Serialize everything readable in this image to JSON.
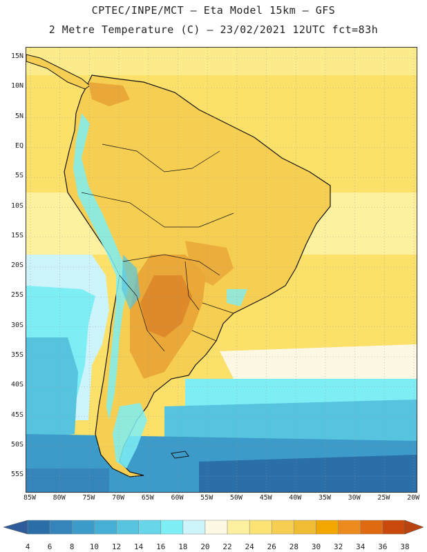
{
  "title_line1": "CPTEC/INPE/MCT –  Eta Model 15km – GFS",
  "title_line2": "2 Metre Temperature (C) – 23/02/2021 12UTC fct=83h",
  "lat_labels": [
    "15N",
    "10N",
    "5N",
    "EQ",
    "5S",
    "10S",
    "15S",
    "20S",
    "25S",
    "30S",
    "35S",
    "40S",
    "45S",
    "50S",
    "55S"
  ],
  "lon_labels": [
    "85W",
    "80W",
    "75W",
    "70W",
    "65W",
    "60W",
    "55W",
    "50W",
    "45W",
    "40W",
    "35W",
    "30W",
    "25W",
    "20W"
  ],
  "colorbar": {
    "ticks": [
      "4",
      "6",
      "8",
      "10",
      "12",
      "14",
      "16",
      "18",
      "20",
      "22",
      "24",
      "26",
      "28",
      "30",
      "32",
      "34",
      "36",
      "38"
    ],
    "colors": [
      "#2b6fa8",
      "#3585bb",
      "#3c9bc9",
      "#47afd6",
      "#56c3df",
      "#67d6e8",
      "#7eeef5",
      "#cdf3fb",
      "#fdf8e3",
      "#fdf1a0",
      "#fbe273",
      "#f6cf52",
      "#efbc33",
      "#f1a700",
      "#ec8a1d",
      "#df6a10",
      "#c9480b"
    ],
    "left_arrow_color": "#2e5c9a",
    "right_arrow_color": "#b8440f"
  },
  "map_colors": {
    "warm_ocean": "#fbe06a",
    "tropical_pale": "#fdf1a0",
    "land_base": "#f6cf52",
    "land_hot": "#e9a838",
    "hot_core": "#de8a2a",
    "subtropic_pale": "#fdf8e3",
    "cool_ocean1": "#cdf3fb",
    "cool_ocean2": "#7eeef5",
    "cool_ocean3": "#56c3df",
    "cold_ocean": "#2b6fa8",
    "andes_cool": "#7eeef5",
    "coastline": "#111111"
  }
}
